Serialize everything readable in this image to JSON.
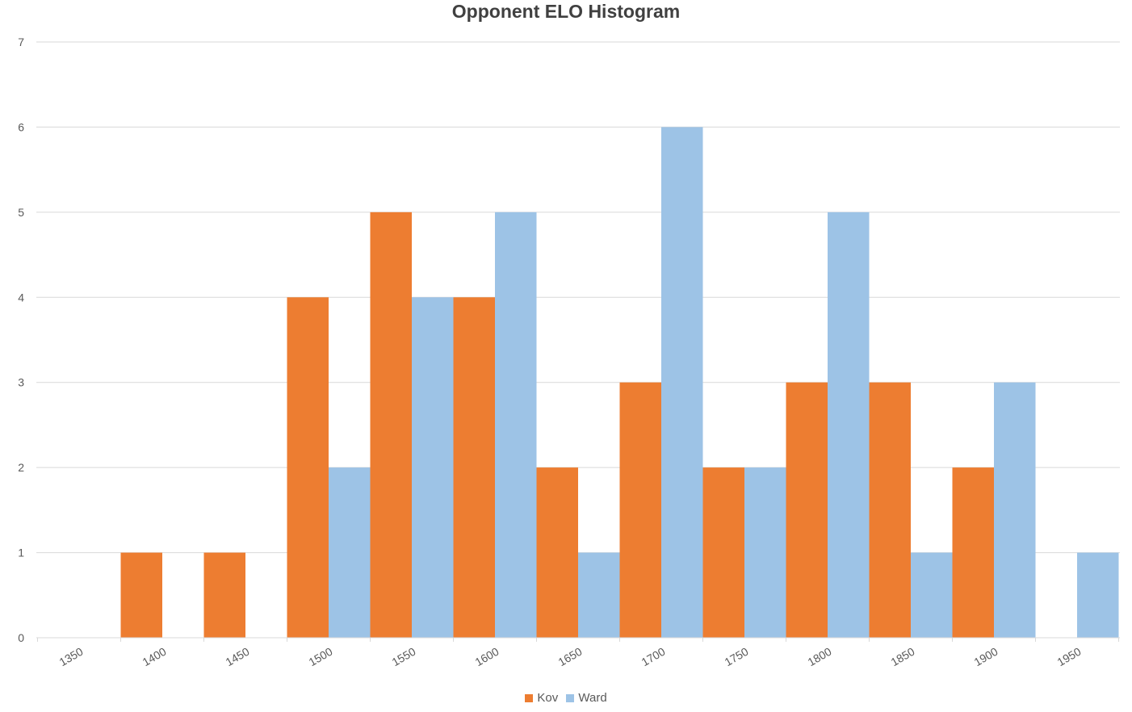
{
  "chart_data": {
    "type": "bar",
    "title": "Opponent ELO Histogram",
    "xlabel": "",
    "ylabel": "",
    "categories": [
      "1350",
      "1400",
      "1450",
      "1500",
      "1550",
      "1600",
      "1650",
      "1700",
      "1750",
      "1800",
      "1850",
      "1900",
      "1950"
    ],
    "series": [
      {
        "name": "Kov",
        "color": "#ED7D31",
        "values": [
          0,
          1,
          1,
          4,
          5,
          4,
          2,
          3,
          2,
          3,
          3,
          2,
          0
        ]
      },
      {
        "name": "Ward",
        "color": "#9DC3E6",
        "values": [
          0,
          0,
          0,
          2,
          4,
          5,
          1,
          6,
          2,
          5,
          1,
          3,
          1
        ]
      }
    ],
    "yticks": [
      "0",
      "1",
      "2",
      "3",
      "4",
      "5",
      "6",
      "7"
    ],
    "ylim": [
      0,
      7
    ],
    "grid": true,
    "legend_position": "bottom"
  }
}
